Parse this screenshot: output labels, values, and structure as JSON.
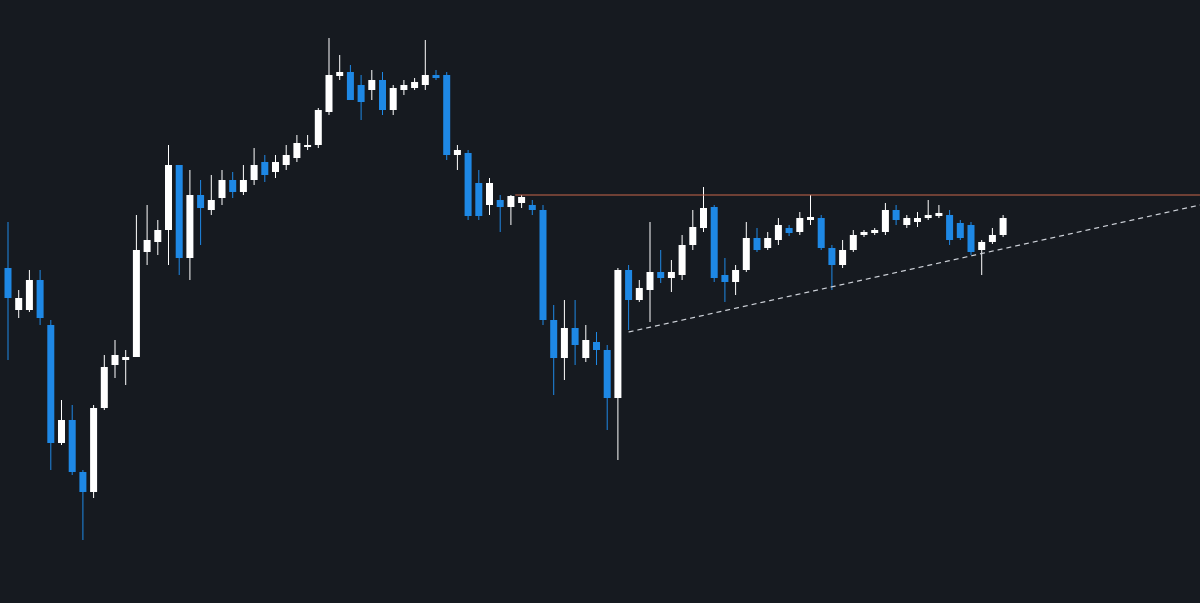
{
  "chart_data": {
    "type": "candlestick",
    "ylim": [
      0,
      603
    ],
    "up_color": "#ffffff",
    "down_color": "#1e88e5",
    "open": [
      335,
      293,
      293,
      323,
      278,
      160,
      183,
      131,
      111,
      195,
      238,
      243,
      246,
      351,
      361,
      373,
      438,
      345,
      408,
      393,
      405,
      423,
      411,
      423,
      441,
      431,
      438,
      445,
      456,
      458,
      491,
      527,
      531,
      518,
      513,
      523,
      493,
      513,
      515,
      518,
      528,
      528,
      448,
      450,
      420,
      398,
      403,
      396,
      400,
      398,
      393,
      283,
      245,
      275,
      245,
      261,
      253,
      205,
      333,
      303,
      313,
      331,
      325,
      328,
      358,
      375,
      396,
      328,
      321,
      333,
      365,
      355,
      363,
      375,
      371,
      383,
      385,
      355,
      338,
      353,
      368,
      370,
      371,
      393,
      378,
      381,
      385,
      387,
      388,
      380,
      378,
      353,
      361,
      368
    ],
    "high": [
      381,
      313,
      333,
      333,
      283,
      203,
      198,
      133,
      198,
      248,
      263,
      253,
      388,
      398,
      383,
      458,
      438,
      433,
      423,
      428,
      433,
      431,
      438,
      455,
      448,
      448,
      458,
      468,
      468,
      495,
      565,
      548,
      538,
      528,
      533,
      531,
      518,
      523,
      525,
      563,
      533,
      531,
      458,
      453,
      433,
      425,
      408,
      408,
      408,
      403,
      398,
      298,
      303,
      303,
      278,
      271,
      258,
      335,
      338,
      323,
      381,
      353,
      343,
      368,
      393,
      416,
      398,
      345,
      338,
      381,
      375,
      371,
      385,
      378,
      391,
      408,
      388,
      358,
      363,
      373,
      373,
      375,
      400,
      398,
      388,
      391,
      403,
      398,
      393,
      383,
      381,
      363,
      375,
      388
    ],
    "low": [
      243,
      285,
      291,
      278,
      133,
      158,
      128,
      63,
      105,
      193,
      225,
      218,
      246,
      338,
      348,
      338,
      328,
      323,
      358,
      388,
      398,
      405,
      408,
      418,
      421,
      425,
      433,
      441,
      453,
      455,
      488,
      523,
      503,
      483,
      503,
      488,
      488,
      508,
      513,
      513,
      523,
      443,
      433,
      383,
      383,
      388,
      371,
      378,
      395,
      388,
      278,
      208,
      223,
      238,
      241,
      238,
      173,
      143,
      273,
      301,
      281,
      320,
      311,
      323,
      353,
      371,
      321,
      301,
      308,
      331,
      351,
      353,
      358,
      367,
      368,
      378,
      353,
      313,
      335,
      351,
      366,
      368,
      368,
      378,
      375,
      376,
      383,
      385,
      358,
      363,
      348,
      328,
      359,
      366
    ],
    "close": [
      305,
      305,
      323,
      285,
      160,
      183,
      131,
      111,
      195,
      236,
      248,
      246,
      353,
      363,
      373,
      438,
      345,
      408,
      395,
      403,
      423,
      411,
      423,
      438,
      428,
      441,
      448,
      460,
      458,
      493,
      528,
      531,
      503,
      501,
      523,
      493,
      515,
      518,
      521,
      528,
      525,
      448,
      453,
      387,
      387,
      420,
      396,
      407,
      406,
      393,
      283,
      245,
      275,
      258,
      263,
      253,
      205,
      333,
      303,
      315,
      331,
      325,
      331,
      358,
      376,
      395,
      325,
      321,
      333,
      365,
      353,
      365,
      378,
      370,
      385,
      386,
      355,
      338,
      353,
      368,
      371,
      373,
      393,
      383,
      385,
      385,
      388,
      390,
      363,
      365,
      351,
      361,
      368,
      385
    ],
    "levels": [
      {
        "value": 408,
        "color": "#c8654a",
        "from_index": 47.4,
        "to_index": 111.4
      }
    ],
    "trendlines": [
      {
        "from": [
          58,
          271
        ],
        "to": [
          111.4,
          398
        ],
        "color": "#cfd3da",
        "dashed": true
      }
    ]
  }
}
